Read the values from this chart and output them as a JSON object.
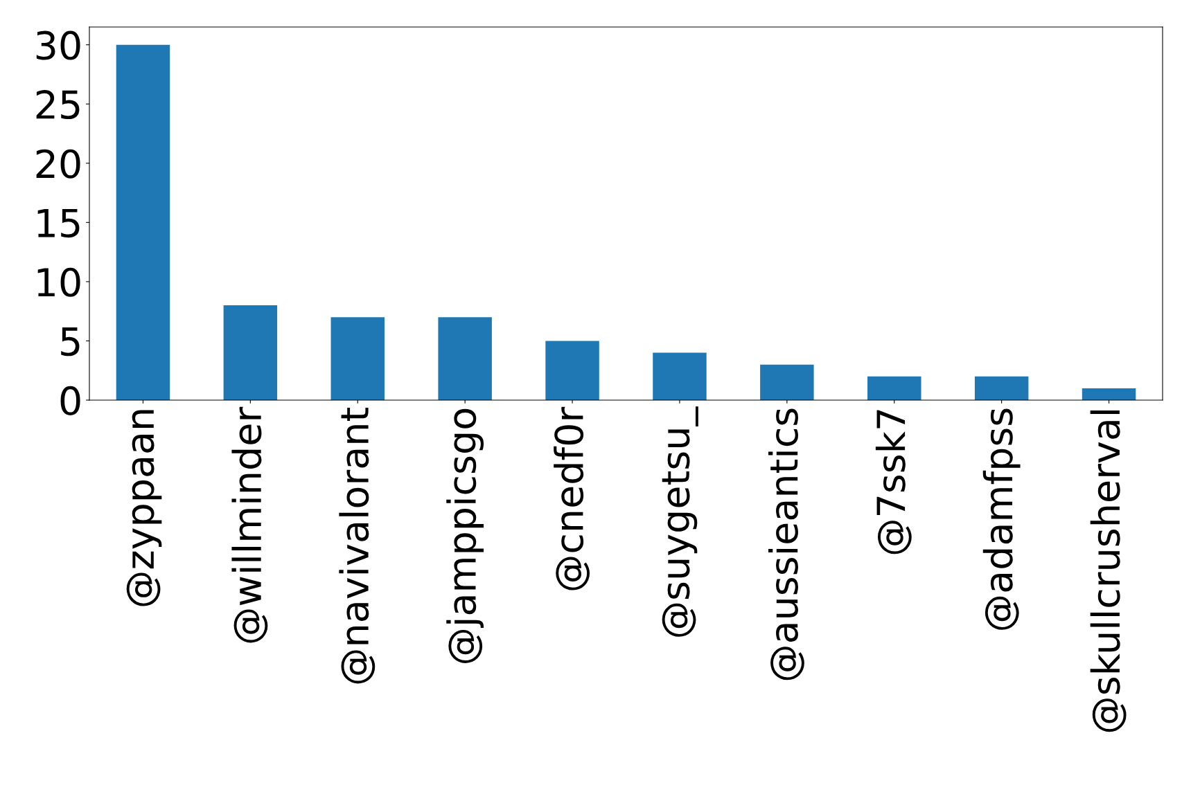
{
  "chart_data": {
    "type": "bar",
    "categories": [
      "@zyppaan",
      "@willminder",
      "@navivalorant",
      "@jamppicsgo",
      "@cnedf0r",
      "@suygetsu_",
      "@aussieantics",
      "@7ssk7",
      "@adamfpss",
      "@skullcrusherval"
    ],
    "values": [
      30,
      8,
      7,
      7,
      5,
      4,
      3,
      2,
      2,
      1
    ],
    "color": "#1f77b4",
    "ylim": [
      0,
      31.5
    ],
    "yticks": [
      0,
      5,
      10,
      15,
      20,
      25,
      30
    ],
    "grid": false
  }
}
